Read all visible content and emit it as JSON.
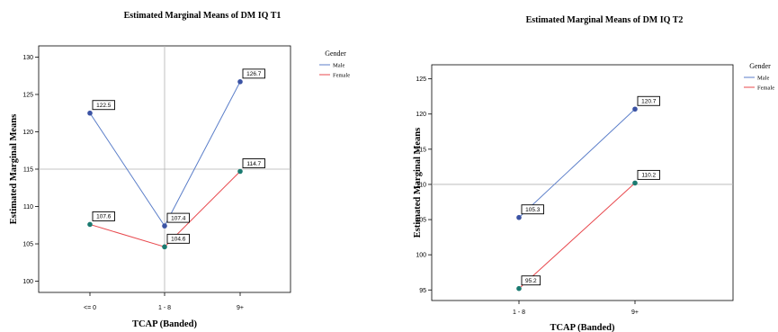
{
  "chart_data": [
    {
      "type": "line",
      "title": "Estimated Marginal Means of DM IQ T1",
      "xlabel": "TCAP (Banded)",
      "ylabel": "Estimated Marginal Means",
      "categories": [
        "<= 0",
        "1 - 8",
        "9+"
      ],
      "ylim": [
        98.5,
        131.5
      ],
      "yticks": [
        100,
        105,
        110,
        115,
        120,
        125,
        130
      ],
      "reference_lines": {
        "x": "1 - 8",
        "y": 115
      },
      "legend": {
        "title": "Gender",
        "placement": "right"
      },
      "series": [
        {
          "name": "Male",
          "color": "#5b7ec9",
          "marker": "#3b53a4",
          "values": [
            122.5,
            107.4,
            126.7
          ],
          "labels": [
            "122.5",
            "107.4",
            "126.7"
          ]
        },
        {
          "name": "Female",
          "color": "#e8484d",
          "marker": "#1a7a70",
          "values": [
            107.6,
            104.6,
            114.7
          ],
          "labels": [
            "107.6",
            "104.6",
            "114.7"
          ]
        }
      ]
    },
    {
      "type": "line",
      "title": "Estimated Marginal Means of DM IQ T2",
      "xlabel": "TCAP (Banded)",
      "ylabel": "Estimated Marginal Means",
      "categories": [
        "1 - 8",
        "9+"
      ],
      "ylim": [
        93.5,
        127
      ],
      "yticks": [
        95,
        100,
        105,
        110,
        115,
        120,
        125
      ],
      "reference_lines": {
        "y": 110
      },
      "legend": {
        "title": "Gender",
        "placement": "right"
      },
      "series": [
        {
          "name": "Male",
          "color": "#5b7ec9",
          "marker": "#3b53a4",
          "values": [
            105.3,
            120.7
          ],
          "labels": [
            "105.3",
            "120.7"
          ]
        },
        {
          "name": "Female",
          "color": "#e8484d",
          "marker": "#1a7a70",
          "values": [
            95.2,
            110.2
          ],
          "labels": [
            "95.2",
            "110.2"
          ]
        }
      ]
    }
  ]
}
